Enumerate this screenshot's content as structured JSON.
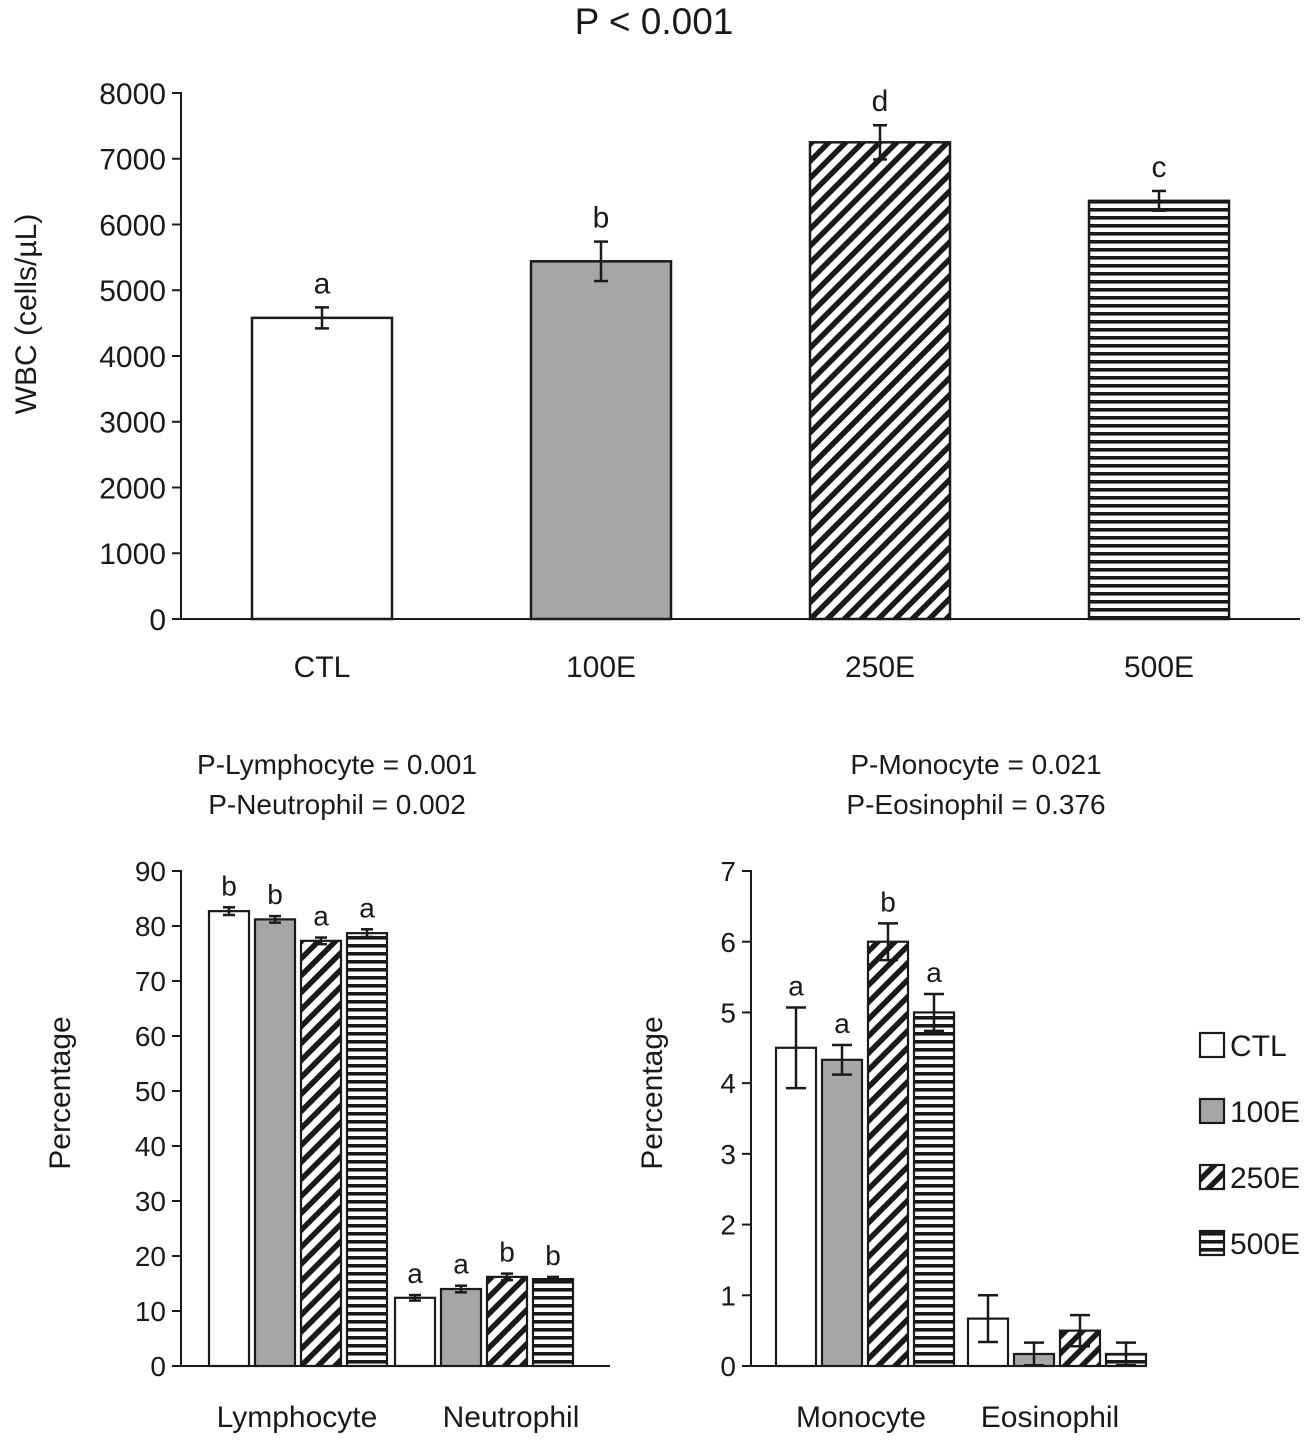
{
  "chart_data": [
    {
      "type": "bar",
      "title": "P < 0.001",
      "xlabel": "",
      "ylabel": "WBC (cells/µL)",
      "ylim": [
        0,
        8000
      ],
      "yticks": [
        0,
        1000,
        2000,
        3000,
        4000,
        5000,
        6000,
        7000,
        8000
      ],
      "categories": [
        "CTL",
        "100E",
        "250E",
        "500E"
      ],
      "values": [
        4580,
        5440,
        7250,
        6360
      ],
      "errors": [
        160,
        300,
        260,
        150
      ],
      "letters": [
        "a",
        "b",
        "d",
        "c"
      ],
      "fills": [
        "white",
        "gray",
        "diagonal",
        "horizontal"
      ]
    },
    {
      "type": "bar",
      "title_lines": [
        "P-Lymphocyte = 0.001",
        "P-Neutrophil = 0.002"
      ],
      "xlabel": "",
      "ylabel": "Percentage",
      "ylim": [
        0,
        90
      ],
      "yticks": [
        0,
        10,
        20,
        30,
        40,
        50,
        60,
        70,
        80,
        90
      ],
      "categories": [
        "Lymphocyte",
        "Neutrophil"
      ],
      "series": [
        {
          "name": "CTL",
          "values": [
            82.7,
            12.4
          ],
          "errors": [
            0.7,
            0.5
          ],
          "letters": [
            "b",
            "a"
          ]
        },
        {
          "name": "100E",
          "values": [
            81.2,
            14.0
          ],
          "errors": [
            0.6,
            0.6
          ],
          "letters": [
            "b",
            "a"
          ]
        },
        {
          "name": "250E",
          "values": [
            77.3,
            16.2
          ],
          "errors": [
            0.6,
            0.6
          ],
          "letters": [
            "a",
            "b"
          ]
        },
        {
          "name": "500E",
          "values": [
            78.7,
            15.8
          ],
          "errors": [
            0.7,
            0.4
          ],
          "letters": [
            "a",
            "b"
          ]
        }
      ]
    },
    {
      "type": "bar",
      "title_lines": [
        "P-Monocyte = 0.021",
        "P-Eosinophil = 0.376"
      ],
      "xlabel": "",
      "ylabel": "Percentage",
      "ylim": [
        0,
        7
      ],
      "yticks": [
        0,
        1,
        2,
        3,
        4,
        5,
        6,
        7
      ],
      "categories": [
        "Monocyte",
        "Eosinophil"
      ],
      "series": [
        {
          "name": "CTL",
          "values": [
            4.5,
            0.67
          ],
          "errors": [
            0.57,
            0.33
          ],
          "letters": [
            "a",
            ""
          ]
        },
        {
          "name": "100E",
          "values": [
            4.33,
            0.17
          ],
          "errors": [
            0.21,
            0.16
          ],
          "letters": [
            "a",
            ""
          ]
        },
        {
          "name": "250E",
          "values": [
            6.0,
            0.5
          ],
          "errors": [
            0.26,
            0.22
          ],
          "letters": [
            "b",
            ""
          ]
        },
        {
          "name": "500E",
          "values": [
            5.0,
            0.17
          ],
          "errors": [
            0.26,
            0.16
          ],
          "letters": [
            "a",
            ""
          ]
        }
      ]
    }
  ],
  "legend": {
    "position": "right",
    "items": [
      {
        "label": "CTL",
        "fill": "white"
      },
      {
        "label": "100E",
        "fill": "gray"
      },
      {
        "label": "250E",
        "fill": "diagonal"
      },
      {
        "label": "500E",
        "fill": "horizontal"
      }
    ]
  },
  "colors": {
    "ink": "#1a1a1a",
    "gray_fill": "#a6a6a6",
    "background": "#ffffff"
  }
}
